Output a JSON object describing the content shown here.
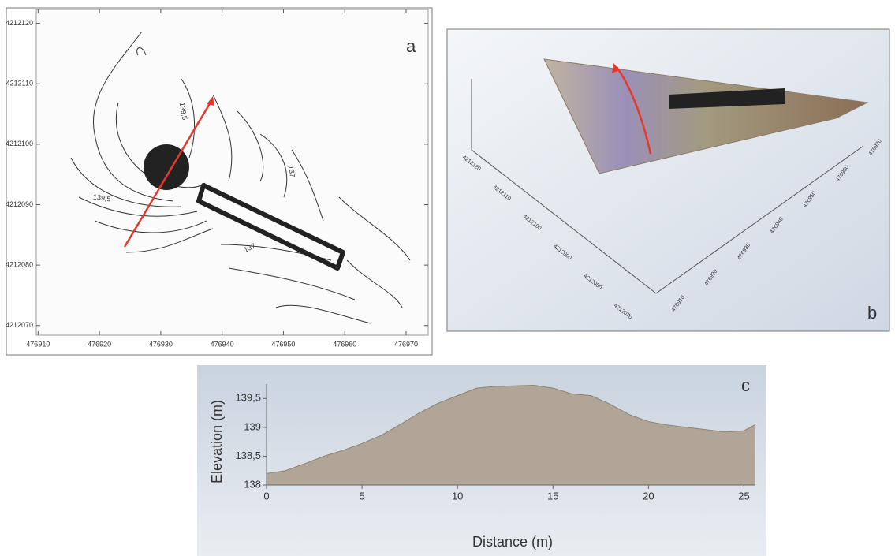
{
  "chart_data": [
    {
      "type": "contour",
      "label": "a",
      "xlim": [
        476909.7,
        476973.6
      ],
      "xticks": [
        476910,
        476920,
        476930,
        476940,
        476950,
        476960,
        476970
      ],
      "ylim": [
        4212068.4,
        4212122.3
      ],
      "yticks": [
        4212070,
        4212080,
        4212090,
        4212100,
        4212110,
        4212120
      ],
      "contour_labels": [
        {
          "value": 139.5,
          "label": "139,5"
        },
        {
          "value": 139.5,
          "label": "139,5"
        },
        {
          "value": 137,
          "label": "137"
        },
        {
          "value": 137,
          "label": "137"
        }
      ]
    },
    {
      "type": "surface3d",
      "label": "b",
      "xticks": [
        476910,
        476920,
        476930,
        476940,
        476950,
        476960,
        476970
      ],
      "yticks": [
        4212120,
        4212110,
        4212100,
        4212090,
        4212080,
        4212070
      ]
    },
    {
      "type": "area",
      "label": "c",
      "xlabel": "Distance (m)",
      "ylabel": "Elevation (m)",
      "color": "#b1a597",
      "x": [
        0,
        1,
        2,
        3,
        4,
        5,
        6,
        7,
        8,
        9,
        10,
        11,
        12,
        13,
        14,
        15,
        16,
        17,
        18,
        19,
        20,
        21,
        22,
        23,
        24,
        25,
        25.6
      ],
      "y": [
        138.2,
        138.25,
        138.37,
        138.5,
        138.6,
        138.72,
        138.86,
        139.05,
        139.25,
        139.42,
        139.55,
        139.68,
        139.71,
        139.72,
        139.73,
        139.68,
        139.58,
        139.55,
        139.4,
        139.22,
        139.1,
        139.04,
        139.0,
        138.96,
        138.92,
        138.94,
        139.05
      ],
      "xlim": [
        0,
        25.6
      ],
      "ylim": [
        138,
        139.75
      ],
      "xticks": [
        0,
        5,
        10,
        15,
        20,
        25
      ],
      "yticks": [
        138,
        {
          "value": 138.5,
          "label": "138,5"
        },
        139,
        {
          "value": 139.5,
          "label": "139,5"
        }
      ]
    }
  ]
}
